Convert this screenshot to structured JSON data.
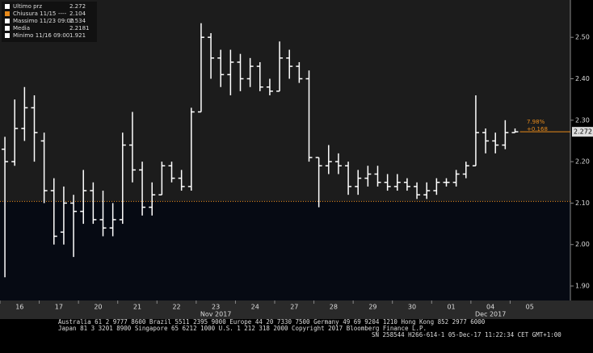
{
  "chart_data": {
    "type": "ohlc",
    "categories": [
      "16",
      "17",
      "20",
      "21",
      "22",
      "23",
      "24",
      "27",
      "28",
      "29",
      "30",
      "01",
      "04",
      "05"
    ],
    "month_labels": [
      {
        "category": 5,
        "label": "Nov 2017"
      },
      {
        "category": 12,
        "label": "Dec 2017"
      }
    ],
    "legend": [
      {
        "name": "Ultimo prz",
        "value": "2.272"
      },
      {
        "name": "Chiusura 11/15",
        "dash": "----",
        "value": "2.104"
      },
      {
        "name": "Massimo 11/23 09:00",
        "value": "2.534"
      },
      {
        "name": "Media",
        "value": "2.2181"
      },
      {
        "name": "Minimo 11/16 09:00",
        "value": "1.921"
      }
    ],
    "color": "#ffffff",
    "open": [
      2.23,
      2.2,
      2.28,
      2.33,
      2.25,
      2.13,
      2.03,
      2.1,
      2.08,
      2.13,
      2.06,
      2.04,
      2.06,
      2.24,
      2.18,
      2.09,
      2.12,
      2.19,
      2.16,
      2.14,
      2.32,
      2.5,
      2.45,
      2.41,
      2.44,
      2.4,
      2.43,
      2.38,
      2.37,
      2.45,
      2.43,
      2.4,
      2.21,
      2.19,
      2.2,
      2.19,
      2.14,
      2.16,
      2.17,
      2.15,
      2.14,
      2.15,
      2.14,
      2.12,
      2.13,
      2.15,
      2.15,
      2.17,
      2.19,
      2.27,
      2.25,
      2.24,
      2.27
    ],
    "high": [
      2.26,
      2.35,
      2.38,
      2.36,
      2.27,
      2.16,
      2.14,
      2.12,
      2.18,
      2.15,
      2.13,
      2.1,
      2.27,
      2.32,
      2.2,
      2.15,
      2.2,
      2.2,
      2.18,
      2.33,
      2.534,
      2.51,
      2.47,
      2.47,
      2.46,
      2.45,
      2.44,
      2.4,
      2.49,
      2.47,
      2.44,
      2.42,
      2.21,
      2.24,
      2.22,
      2.2,
      2.18,
      2.19,
      2.19,
      2.17,
      2.17,
      2.16,
      2.15,
      2.15,
      2.16,
      2.16,
      2.18,
      2.2,
      2.36,
      2.28,
      2.27,
      2.3,
      2.28
    ],
    "low": [
      1.921,
      2.19,
      2.25,
      2.2,
      2.1,
      2.0,
      2.0,
      1.97,
      2.05,
      2.05,
      2.02,
      2.02,
      2.05,
      2.15,
      2.07,
      2.07,
      2.12,
      2.15,
      2.13,
      2.13,
      2.32,
      2.4,
      2.38,
      2.36,
      2.37,
      2.38,
      2.37,
      2.36,
      2.37,
      2.4,
      2.39,
      2.2,
      2.09,
      2.17,
      2.17,
      2.12,
      2.12,
      2.14,
      2.14,
      2.13,
      2.13,
      2.13,
      2.11,
      2.11,
      2.12,
      2.14,
      2.14,
      2.16,
      2.19,
      2.22,
      2.22,
      2.23,
      2.27
    ],
    "close": [
      2.2,
      2.28,
      2.33,
      2.27,
      2.13,
      2.02,
      2.1,
      2.08,
      2.13,
      2.06,
      2.04,
      2.06,
      2.24,
      2.18,
      2.09,
      2.12,
      2.19,
      2.16,
      2.14,
      2.32,
      2.5,
      2.45,
      2.41,
      2.44,
      2.4,
      2.43,
      2.38,
      2.37,
      2.45,
      2.43,
      2.4,
      2.21,
      2.19,
      2.2,
      2.19,
      2.14,
      2.16,
      2.17,
      2.15,
      2.14,
      2.15,
      2.14,
      2.12,
      2.13,
      2.15,
      2.15,
      2.17,
      2.19,
      2.27,
      2.25,
      2.24,
      2.27,
      2.272
    ],
    "reference_line": 2.104,
    "last_value": 2.272,
    "last_label": "2.272",
    "annotations": [
      "7.98%",
      "+0.168"
    ],
    "ylim": [
      1.865,
      2.59
    ],
    "yticks": [
      {
        "value": 1.9,
        "label": "1.90"
      },
      {
        "value": 2.0,
        "label": "2.00"
      },
      {
        "value": 2.1,
        "label": "2.10"
      },
      {
        "value": 2.2,
        "label": "2.20"
      },
      {
        "value": 2.3,
        "label": "2.30"
      },
      {
        "value": 2.4,
        "label": "2.40"
      },
      {
        "value": 2.5,
        "label": "2.50"
      }
    ],
    "footer": [
      "Australia 61 2 9777 8600 Brazil 5511 2395 9000 Europe 44 20 7330 7500 Germany 49 69 9204 1210 Hong Kong 852 2977 6000",
      "Japan 81 3 3201 8900        Singapore 65 6212 1000        U.S. 1 212 318 2000        Copyright 2017 Bloomberg Finance L.P.",
      "SN 258544 H266-614-1 05-Dec-17 11:22:34 CET  GMT+1:00"
    ]
  }
}
